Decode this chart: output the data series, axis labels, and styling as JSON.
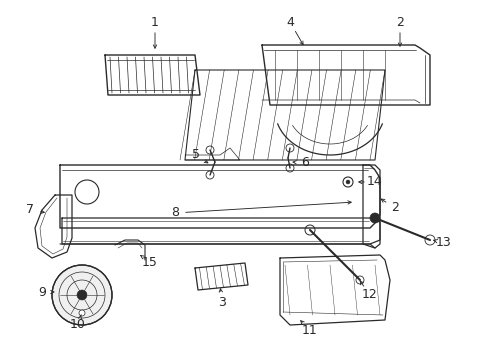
{
  "bg_color": "#ffffff",
  "line_color": "#2a2a2a",
  "fig_width": 4.89,
  "fig_height": 3.6,
  "dpi": 100,
  "label_fs": 9,
  "lw": 0.8
}
